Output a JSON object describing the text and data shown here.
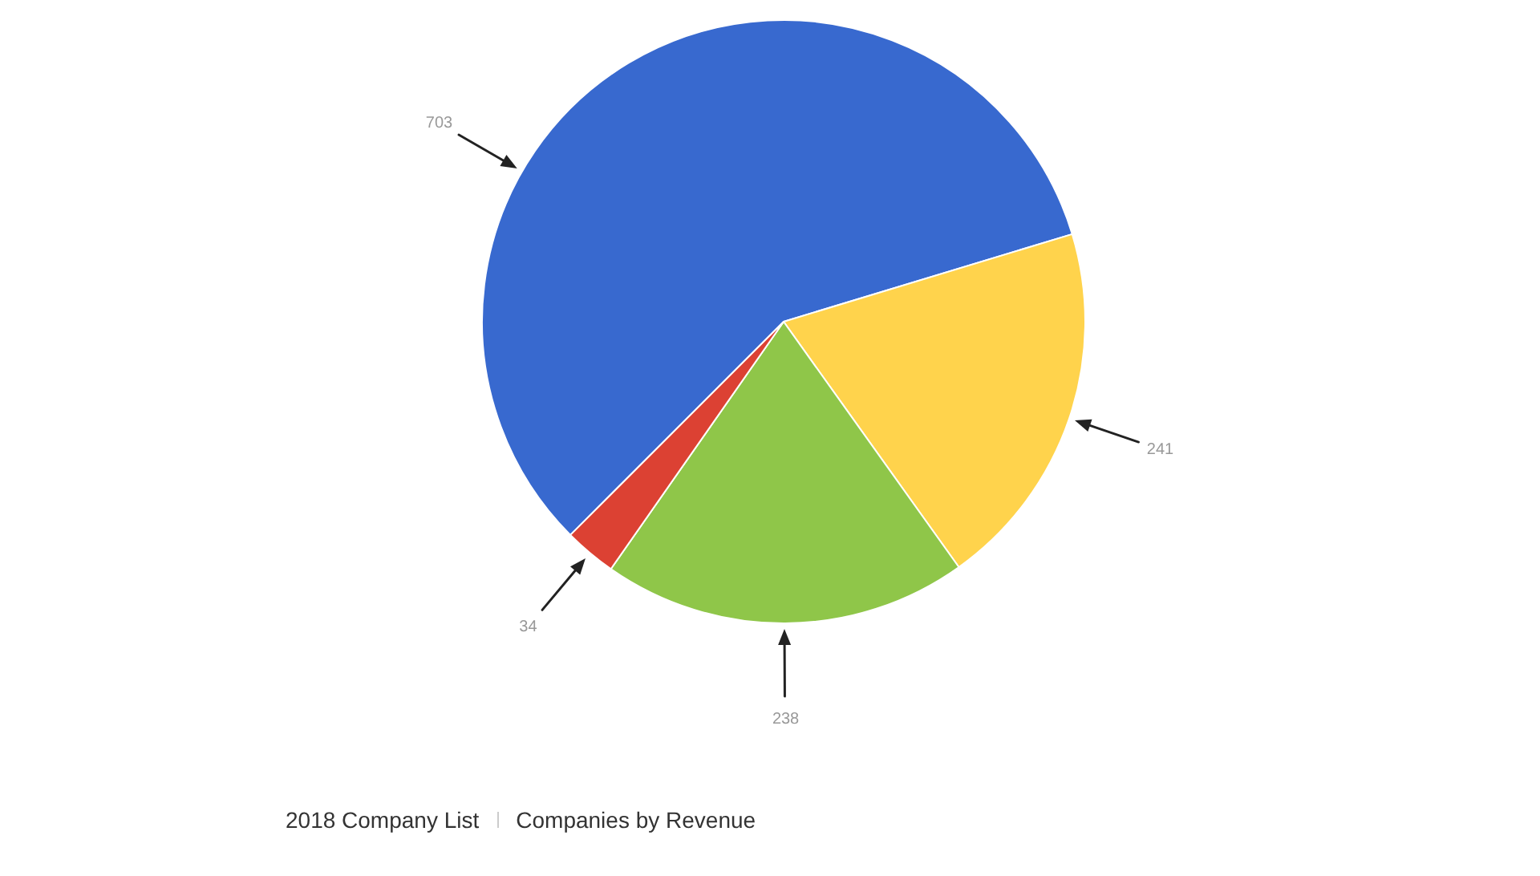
{
  "chart_data": {
    "type": "pie",
    "categories": [
      null,
      null,
      null,
      null
    ],
    "values": [
      703,
      241,
      238,
      34
    ],
    "colors": [
      "#3869cf",
      "#ffd34c",
      "#8fc649",
      "#dc4133"
    ],
    "data_labels": true,
    "annotations": [
      "2018 Company List",
      "Companies by Revenue"
    ]
  }
}
